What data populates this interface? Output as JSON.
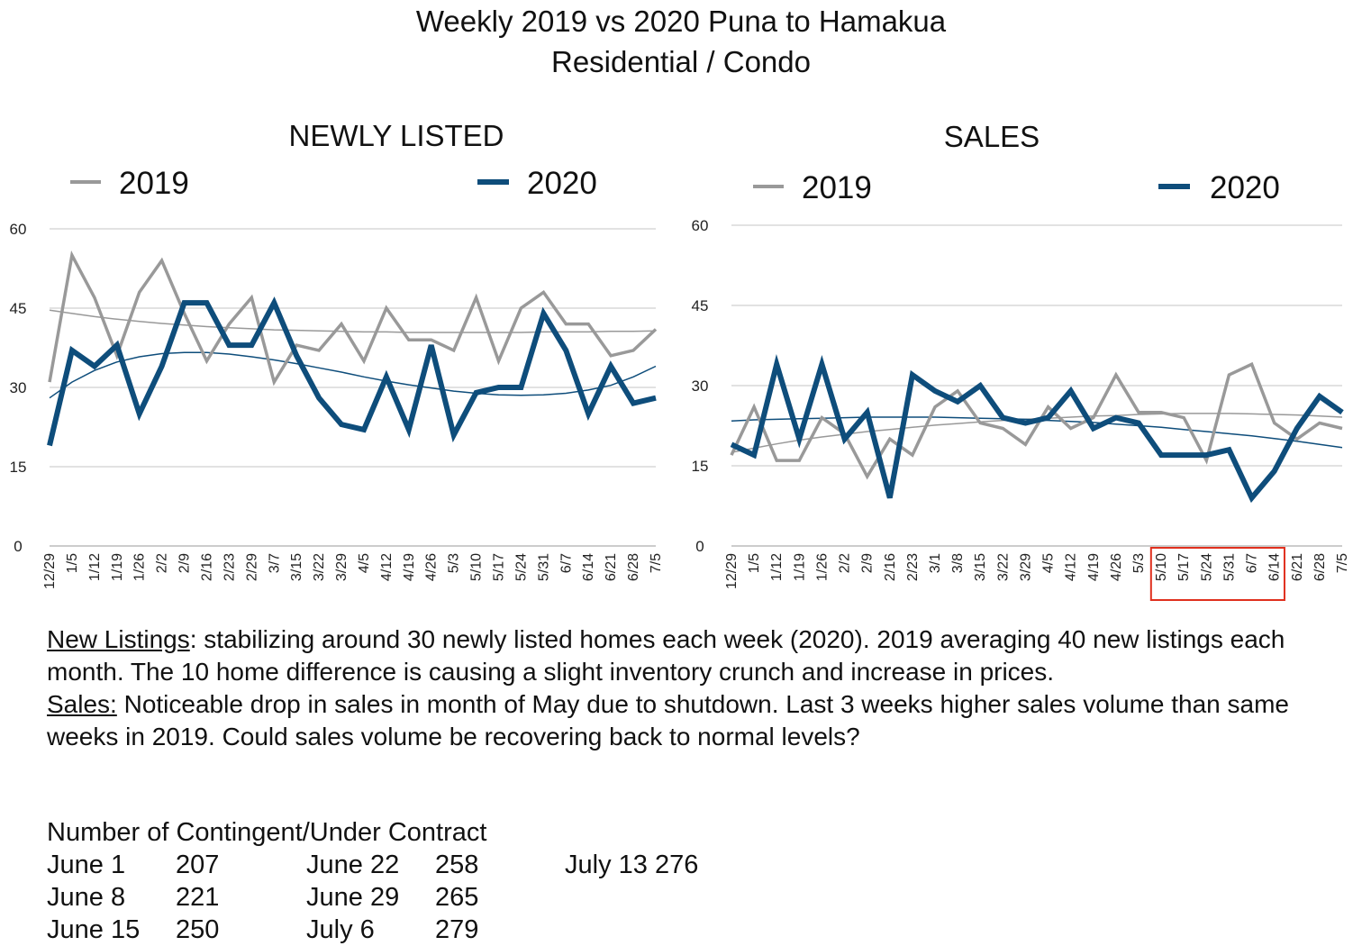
{
  "title_line1": "Weekly 2019 vs 2020 Puna to Hamakua",
  "title_line2": "Residential / Condo",
  "chart_data": [
    {
      "type": "line",
      "title": "NEWLY LISTED",
      "categories": [
        "12/29",
        "1/5",
        "1/12",
        "1/19",
        "1/26",
        "2/2",
        "2/9",
        "2/16",
        "2/23",
        "2/29",
        "3/7",
        "3/15",
        "3/22",
        "3/29",
        "4/5",
        "4/12",
        "4/19",
        "4/26",
        "5/3",
        "5/10",
        "5/17",
        "5/24",
        "5/31",
        "6/7",
        "6/14",
        "6/21",
        "6/28",
        "7/5"
      ],
      "ylim": [
        0,
        60
      ],
      "yticks": [
        0,
        15,
        30,
        45,
        60
      ],
      "legend_position": "top",
      "grid": true,
      "series": [
        {
          "name": "2019",
          "color": "#999999",
          "values": [
            31,
            55,
            47,
            36,
            48,
            54,
            44,
            35,
            42,
            47,
            31,
            38,
            37,
            42,
            35,
            45,
            39,
            39,
            37,
            47,
            35,
            45,
            48,
            42,
            42,
            36,
            37,
            41
          ],
          "trend": [
            44.6,
            44.0,
            43.4,
            42.9,
            42.5,
            42.1,
            41.8,
            41.5,
            41.3,
            41.1,
            40.9,
            40.8,
            40.7,
            40.6,
            40.5,
            40.5,
            40.4,
            40.4,
            40.4,
            40.4,
            40.4,
            40.4,
            40.5,
            40.5,
            40.5,
            40.6,
            40.6,
            40.7
          ]
        },
        {
          "name": "2020",
          "color": "#0E4D7B",
          "values": [
            19,
            37,
            34,
            38,
            25,
            34,
            46,
            46,
            38,
            38,
            46,
            36,
            28,
            23,
            22,
            32,
            22,
            38,
            21,
            29,
            30,
            30,
            44,
            37,
            25,
            34,
            27,
            28
          ],
          "trend": [
            28.0,
            31.0,
            33.2,
            34.8,
            35.8,
            36.4,
            36.6,
            36.6,
            36.3,
            35.8,
            35.2,
            34.5,
            33.7,
            32.9,
            32.0,
            31.2,
            30.5,
            29.9,
            29.3,
            28.9,
            28.6,
            28.5,
            28.6,
            28.9,
            29.5,
            30.4,
            32.0,
            34.0
          ]
        }
      ]
    },
    {
      "type": "line",
      "title": "SALES",
      "categories": [
        "12/29",
        "1/5",
        "1/12",
        "1/19",
        "1/26",
        "2/2",
        "2/9",
        "2/16",
        "2/23",
        "3/1",
        "3/8",
        "3/15",
        "3/22",
        "3/29",
        "4/5",
        "4/12",
        "4/19",
        "4/26",
        "5/3",
        "5/10",
        "5/17",
        "5/24",
        "5/31",
        "6/7",
        "6/14",
        "6/21",
        "6/28",
        "7/5"
      ],
      "ylim": [
        0,
        60
      ],
      "yticks": [
        0,
        15,
        30,
        45,
        60
      ],
      "legend_position": "top",
      "grid": true,
      "highlight_range": [
        "5/10",
        "6/14"
      ],
      "series": [
        {
          "name": "2019",
          "color": "#999999",
          "values": [
            17,
            26,
            16,
            16,
            24,
            21,
            13,
            20,
            17,
            26,
            29,
            23,
            22,
            19,
            26,
            22,
            24,
            32,
            25,
            25,
            24,
            16,
            32,
            34,
            23,
            20,
            23,
            22
          ],
          "trend": [
            17.5,
            18.3,
            19.1,
            19.8,
            20.4,
            20.9,
            21.4,
            21.8,
            22.2,
            22.6,
            22.9,
            23.2,
            23.5,
            23.7,
            23.9,
            24.1,
            24.3,
            24.4,
            24.6,
            24.7,
            24.8,
            24.8,
            24.8,
            24.7,
            24.6,
            24.5,
            24.3,
            24.1
          ]
        },
        {
          "name": "2020",
          "color": "#0E4D7B",
          "values": [
            19,
            17,
            34,
            20,
            34,
            20,
            25,
            9,
            32,
            29,
            27,
            30,
            24,
            23,
            24,
            29,
            22,
            24,
            23,
            17,
            17,
            17,
            18,
            9,
            14,
            22,
            28,
            25
          ],
          "trend": [
            23.4,
            23.6,
            23.7,
            23.8,
            23.9,
            24.0,
            24.1,
            24.1,
            24.1,
            24.1,
            24.0,
            23.9,
            23.8,
            23.7,
            23.5,
            23.3,
            23.1,
            22.8,
            22.5,
            22.2,
            21.8,
            21.4,
            21.0,
            20.6,
            20.1,
            19.6,
            19.0,
            18.4
          ]
        }
      ]
    }
  ],
  "notes": {
    "new_listings_label": "New Listings",
    "new_listings_text": ": stabilizing around 30 newly listed homes each week (2020). 2019 averaging 40 new listings each month. The 10 home difference is causing a slight inventory crunch and increase in prices.",
    "sales_label": "Sales:",
    "sales_text": " Noticeable drop in sales in month of May due to shutdown. Last 3 weeks higher sales volume than same weeks in 2019. Could sales volume be recovering back to normal levels?"
  },
  "contingent": {
    "heading": "Number of Contingent/Under Contract",
    "rows": [
      {
        "d1": "June 1",
        "v1": "207",
        "d2": "June 22",
        "v2": "258",
        "extra": "July 13 276"
      },
      {
        "d1": "June 8",
        "v1": "221",
        "d2": "June 29",
        "v2": "265",
        "extra": ""
      },
      {
        "d1": "June 15",
        "v1": "250",
        "d2": "July 6",
        "v2": "279",
        "extra": ""
      }
    ]
  }
}
